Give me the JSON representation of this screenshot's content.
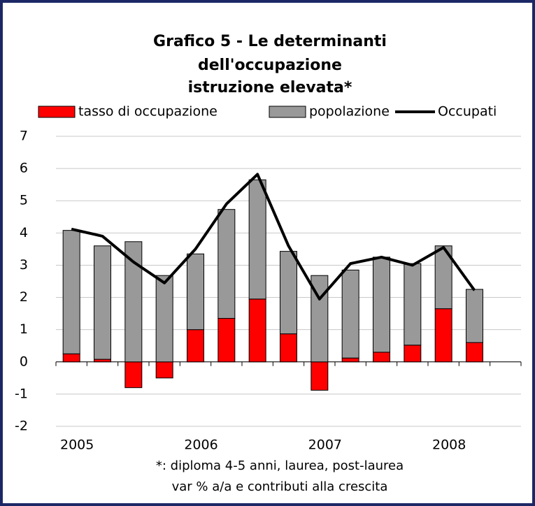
{
  "chart_data": {
    "type": "bar",
    "title": [
      "Grafico 5 - Le determinanti",
      "dell'occupazione",
      "istruzione elevata*"
    ],
    "footnote": [
      "*: diploma 4-5 anni, laurea, post-laurea",
      "var % a/a e contributi alla crescita"
    ],
    "categories": [
      "2005",
      null,
      null,
      null,
      "2006",
      null,
      null,
      null,
      "2007",
      null,
      null,
      null,
      "2008",
      null,
      null
    ],
    "series": [
      {
        "name": "tasso di occupazione",
        "type": "bar",
        "color": "#ff0000",
        "values": [
          0.25,
          0.08,
          -0.8,
          -0.5,
          1.0,
          1.35,
          1.95,
          0.87,
          -0.88,
          0.12,
          0.3,
          0.52,
          1.65,
          0.6,
          null
        ]
      },
      {
        "name": "popolazione",
        "type": "bar",
        "color": "#999999",
        "values": [
          3.83,
          3.52,
          3.73,
          2.68,
          2.35,
          3.38,
          3.7,
          2.56,
          2.68,
          2.73,
          2.95,
          2.53,
          1.95,
          1.65,
          null
        ]
      },
      {
        "name": "Occupati",
        "type": "line",
        "color": "#000000",
        "values": [
          4.12,
          3.9,
          3.1,
          2.45,
          3.5,
          4.9,
          5.82,
          3.6,
          1.95,
          3.05,
          3.25,
          3.0,
          3.55,
          2.22,
          null
        ]
      }
    ],
    "stacked": true,
    "ylim": [
      -2,
      7
    ],
    "yticks": [
      -2,
      -1,
      0,
      1,
      2,
      3,
      4,
      5,
      6,
      7
    ],
    "grid": true,
    "legend": "top"
  }
}
